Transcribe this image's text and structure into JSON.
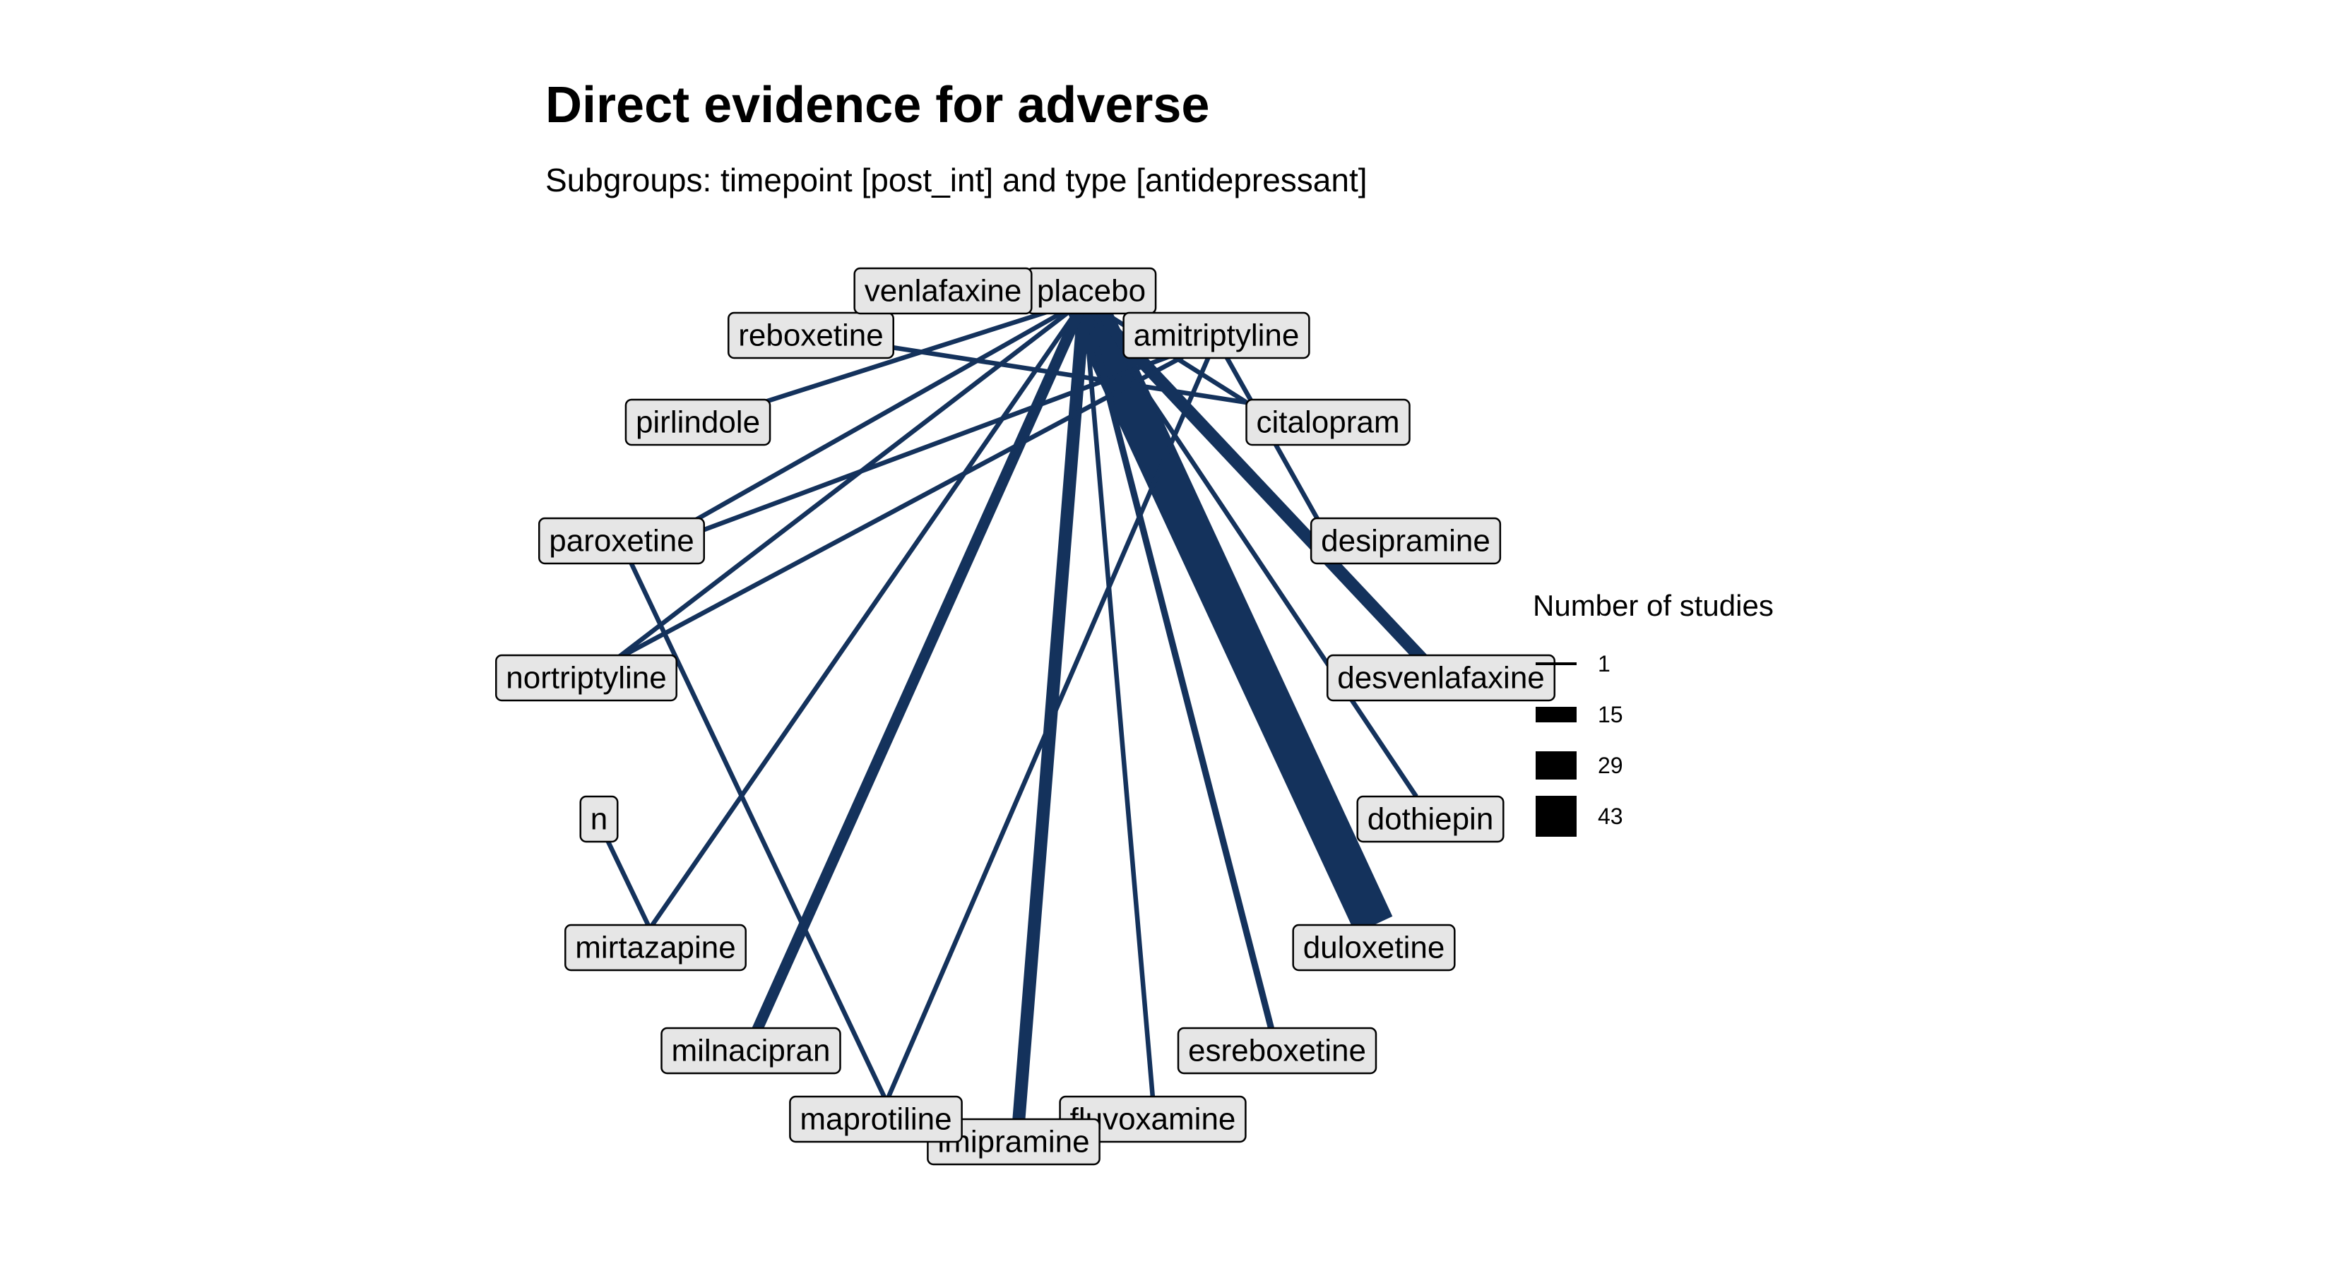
{
  "title": "Direct evidence for adverse",
  "subtitle": "Subgroups: timepoint [post_int] and type [antidepressant]",
  "legend": {
    "title": "Number of studies",
    "entries": [
      {
        "label": "1",
        "value": 1
      },
      {
        "label": "15",
        "value": 15
      },
      {
        "label": "29",
        "value": 29
      },
      {
        "label": "43",
        "value": 43
      }
    ]
  },
  "colors": {
    "edge": "#14325c",
    "node_fill": "#e6e6e6",
    "node_border": "#000000"
  },
  "nodes": [
    {
      "id": "placebo",
      "label": "placebo"
    },
    {
      "id": "amitriptyline",
      "label": "amitriptyline"
    },
    {
      "id": "citalopram",
      "label": "citalopram"
    },
    {
      "id": "desipramine",
      "label": "desipramine"
    },
    {
      "id": "desvenlafaxine",
      "label": "desvenlafaxine"
    },
    {
      "id": "dothiepin",
      "label": "dothiepin"
    },
    {
      "id": "duloxetine",
      "label": "duloxetine"
    },
    {
      "id": "esreboxetine",
      "label": "esreboxetine"
    },
    {
      "id": "fluvoxamine",
      "label": "fluvoxamine"
    },
    {
      "id": "imipramine",
      "label": "imipramine"
    },
    {
      "id": "maprotiline",
      "label": "maprotiline"
    },
    {
      "id": "milnacipran",
      "label": "milnacipran"
    },
    {
      "id": "mirtazapine",
      "label": "mirtazapine"
    },
    {
      "id": "n",
      "label": "n"
    },
    {
      "id": "nortriptyline",
      "label": "nortriptyline"
    },
    {
      "id": "paroxetine",
      "label": "paroxetine"
    },
    {
      "id": "pirlindole",
      "label": "pirlindole"
    },
    {
      "id": "reboxetine",
      "label": "reboxetine"
    },
    {
      "id": "venlafaxine",
      "label": "venlafaxine"
    }
  ],
  "edges": [
    {
      "from": "placebo",
      "to": "duloxetine",
      "studies": 43
    },
    {
      "from": "placebo",
      "to": "desvenlafaxine",
      "studies": 12
    },
    {
      "from": "placebo",
      "to": "imipramine",
      "studies": 12
    },
    {
      "from": "placebo",
      "to": "milnacipran",
      "studies": 10
    },
    {
      "from": "placebo",
      "to": "esreboxetine",
      "studies": 5
    },
    {
      "from": "placebo",
      "to": "fluvoxamine",
      "studies": 3
    },
    {
      "from": "placebo",
      "to": "dothiepin",
      "studies": 3
    },
    {
      "from": "placebo",
      "to": "venlafaxine",
      "studies": 3
    },
    {
      "from": "placebo",
      "to": "mirtazapine",
      "studies": 3
    },
    {
      "from": "placebo",
      "to": "nortriptyline",
      "studies": 3
    },
    {
      "from": "placebo",
      "to": "pirlindole",
      "studies": 3
    },
    {
      "from": "placebo",
      "to": "paroxetine",
      "studies": 3
    },
    {
      "from": "placebo",
      "to": "citalopram",
      "studies": 3
    },
    {
      "from": "placebo",
      "to": "amitriptyline",
      "studies": 3
    },
    {
      "from": "amitriptyline",
      "to": "desipramine",
      "studies": 3
    },
    {
      "from": "amitriptyline",
      "to": "maprotiline",
      "studies": 3
    },
    {
      "from": "amitriptyline",
      "to": "nortriptyline",
      "studies": 3
    },
    {
      "from": "amitriptyline",
      "to": "paroxetine",
      "studies": 3
    },
    {
      "from": "reboxetine",
      "to": "citalopram",
      "studies": 3
    },
    {
      "from": "paroxetine",
      "to": "maprotiline",
      "studies": 3
    },
    {
      "from": "n",
      "to": "mirtazapine",
      "studies": 3
    }
  ]
}
